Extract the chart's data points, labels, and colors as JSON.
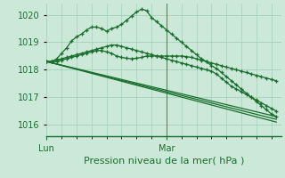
{
  "bg_color": "#cce8d8",
  "grid_color": "#99ccb0",
  "line_color": "#1a6e2e",
  "marker_color": "#1a6e2e",
  "title": "Pression niveau de la mer( hPa )",
  "ylim": [
    1015.6,
    1020.4
  ],
  "xlim": [
    0,
    47
  ],
  "yticks": [
    1016,
    1017,
    1018,
    1019,
    1020
  ],
  "xtick_positions": [
    0,
    24
  ],
  "xtick_labels": [
    "Lun",
    "Mar"
  ],
  "mar_x": 24,
  "series": [
    {
      "x": [
        0,
        1,
        2,
        3,
        4,
        5,
        6,
        7,
        8,
        9,
        10,
        11,
        12,
        13,
        14,
        15,
        16,
        17,
        18,
        19,
        20,
        21,
        22,
        23,
        24,
        25,
        26,
        27,
        28,
        29,
        30,
        31,
        32,
        33,
        34,
        35,
        36,
        37,
        38,
        39,
        40,
        41,
        42,
        43,
        44,
        45,
        46
      ],
      "y": [
        1018.3,
        1018.3,
        1018.3,
        1018.35,
        1018.4,
        1018.45,
        1018.5,
        1018.55,
        1018.6,
        1018.65,
        1018.7,
        1018.7,
        1018.65,
        1018.6,
        1018.5,
        1018.45,
        1018.42,
        1018.4,
        1018.42,
        1018.45,
        1018.5,
        1018.5,
        1018.5,
        1018.5,
        1018.5,
        1018.5,
        1018.5,
        1018.5,
        1018.48,
        1018.45,
        1018.4,
        1018.35,
        1018.3,
        1018.25,
        1018.2,
        1018.15,
        1018.1,
        1018.05,
        1018.0,
        1017.95,
        1017.9,
        1017.85,
        1017.8,
        1017.75,
        1017.7,
        1017.65,
        1017.6
      ]
    },
    {
      "x": [
        0,
        1,
        2,
        3,
        4,
        5,
        6,
        7,
        8,
        9,
        10,
        11,
        12,
        13,
        14,
        15,
        16,
        17,
        18,
        19,
        20,
        21,
        22,
        23,
        24,
        25,
        26,
        27,
        28,
        29,
        30,
        31,
        32,
        33,
        34,
        35,
        36,
        37,
        38,
        39,
        40,
        41,
        42,
        43,
        44,
        45,
        46
      ],
      "y": [
        1018.3,
        1018.3,
        1018.4,
        1018.6,
        1018.8,
        1019.05,
        1019.2,
        1019.3,
        1019.45,
        1019.55,
        1019.55,
        1019.5,
        1019.4,
        1019.5,
        1019.55,
        1019.65,
        1019.8,
        1019.95,
        1020.1,
        1020.2,
        1020.15,
        1019.9,
        1019.75,
        1019.6,
        1019.45,
        1019.3,
        1019.15,
        1019.0,
        1018.85,
        1018.7,
        1018.55,
        1018.4,
        1018.3,
        1018.15,
        1018.05,
        1017.9,
        1017.75,
        1017.6,
        1017.45,
        1017.3,
        1017.15,
        1017.0,
        1016.85,
        1016.7,
        1016.55,
        1016.4,
        1016.3
      ]
    },
    {
      "x": [
        0,
        1,
        2,
        3,
        4,
        5,
        6,
        7,
        8,
        9,
        10,
        11,
        12,
        13,
        14,
        15,
        16,
        17,
        18,
        19,
        20,
        21,
        22,
        23,
        24,
        25,
        26,
        27,
        28,
        29,
        30,
        31,
        32,
        33,
        34,
        35,
        36,
        37,
        38,
        39,
        40,
        41,
        42,
        43,
        44,
        45,
        46
      ],
      "y": [
        1018.3,
        1018.3,
        1018.35,
        1018.4,
        1018.45,
        1018.5,
        1018.55,
        1018.6,
        1018.65,
        1018.7,
        1018.75,
        1018.8,
        1018.85,
        1018.9,
        1018.9,
        1018.85,
        1018.8,
        1018.75,
        1018.7,
        1018.65,
        1018.6,
        1018.55,
        1018.5,
        1018.45,
        1018.4,
        1018.35,
        1018.3,
        1018.25,
        1018.2,
        1018.15,
        1018.1,
        1018.05,
        1018.0,
        1017.95,
        1017.85,
        1017.7,
        1017.55,
        1017.4,
        1017.3,
        1017.2,
        1017.1,
        1017.0,
        1016.9,
        1016.8,
        1016.7,
        1016.6,
        1016.5
      ]
    },
    {
      "x": [
        0,
        46
      ],
      "y": [
        1018.3,
        1016.1
      ]
    },
    {
      "x": [
        0,
        46
      ],
      "y": [
        1018.3,
        1016.2
      ]
    },
    {
      "x": [
        0,
        46
      ],
      "y": [
        1018.3,
        1016.3
      ]
    }
  ]
}
